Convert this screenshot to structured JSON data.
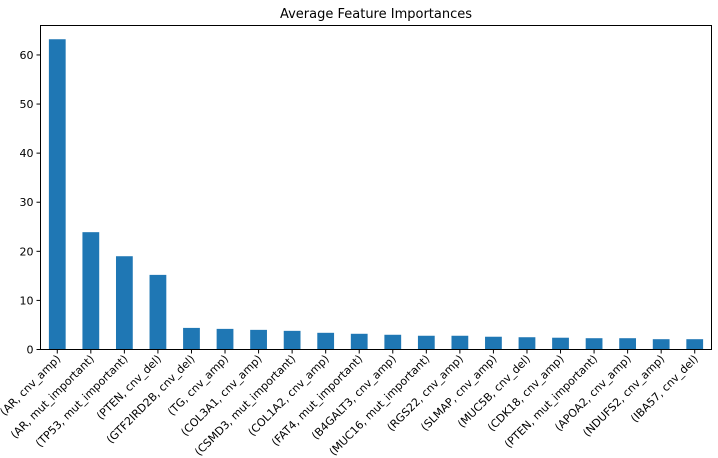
{
  "chart_data": {
    "type": "bar",
    "title": "Average Feature Importances",
    "xlabel": "",
    "ylabel": "",
    "ylim": [
      0,
      66
    ],
    "yticks": [
      0,
      10,
      20,
      30,
      40,
      50,
      60
    ],
    "grid": false,
    "legend": "none",
    "bar_color": "#1f77b4",
    "categories": [
      "(AR, cnv_amp)",
      "(AR, mut_important)",
      "(TP53, mut_important)",
      "(PTEN, cnv_del)",
      "(GTF2IRD2B, cnv_del)",
      "(TG, cnv_amp)",
      "(COL3A1, cnv_amp)",
      "(CSMD3, mut_important)",
      "(COL1A2, cnv_amp)",
      "(FAT4, mut_important)",
      "(B4GALT3, cnv_amp)",
      "(MUC16, mut_important)",
      "(RGS22, cnv_amp)",
      "(SLMAP, cnv_amp)",
      "(MUC5B, cnv_del)",
      "(CDK18, cnv_amp)",
      "(PTEN, mut_important)",
      "(APOA2, cnv_amp)",
      "(NDUFS2, cnv_amp)",
      "(IBA57, cnv_del)"
    ],
    "values": [
      63.2,
      23.9,
      19.0,
      15.2,
      4.4,
      4.2,
      4.0,
      3.8,
      3.4,
      3.2,
      3.0,
      2.8,
      2.8,
      2.6,
      2.5,
      2.4,
      2.3,
      2.3,
      2.1,
      2.1
    ]
  }
}
